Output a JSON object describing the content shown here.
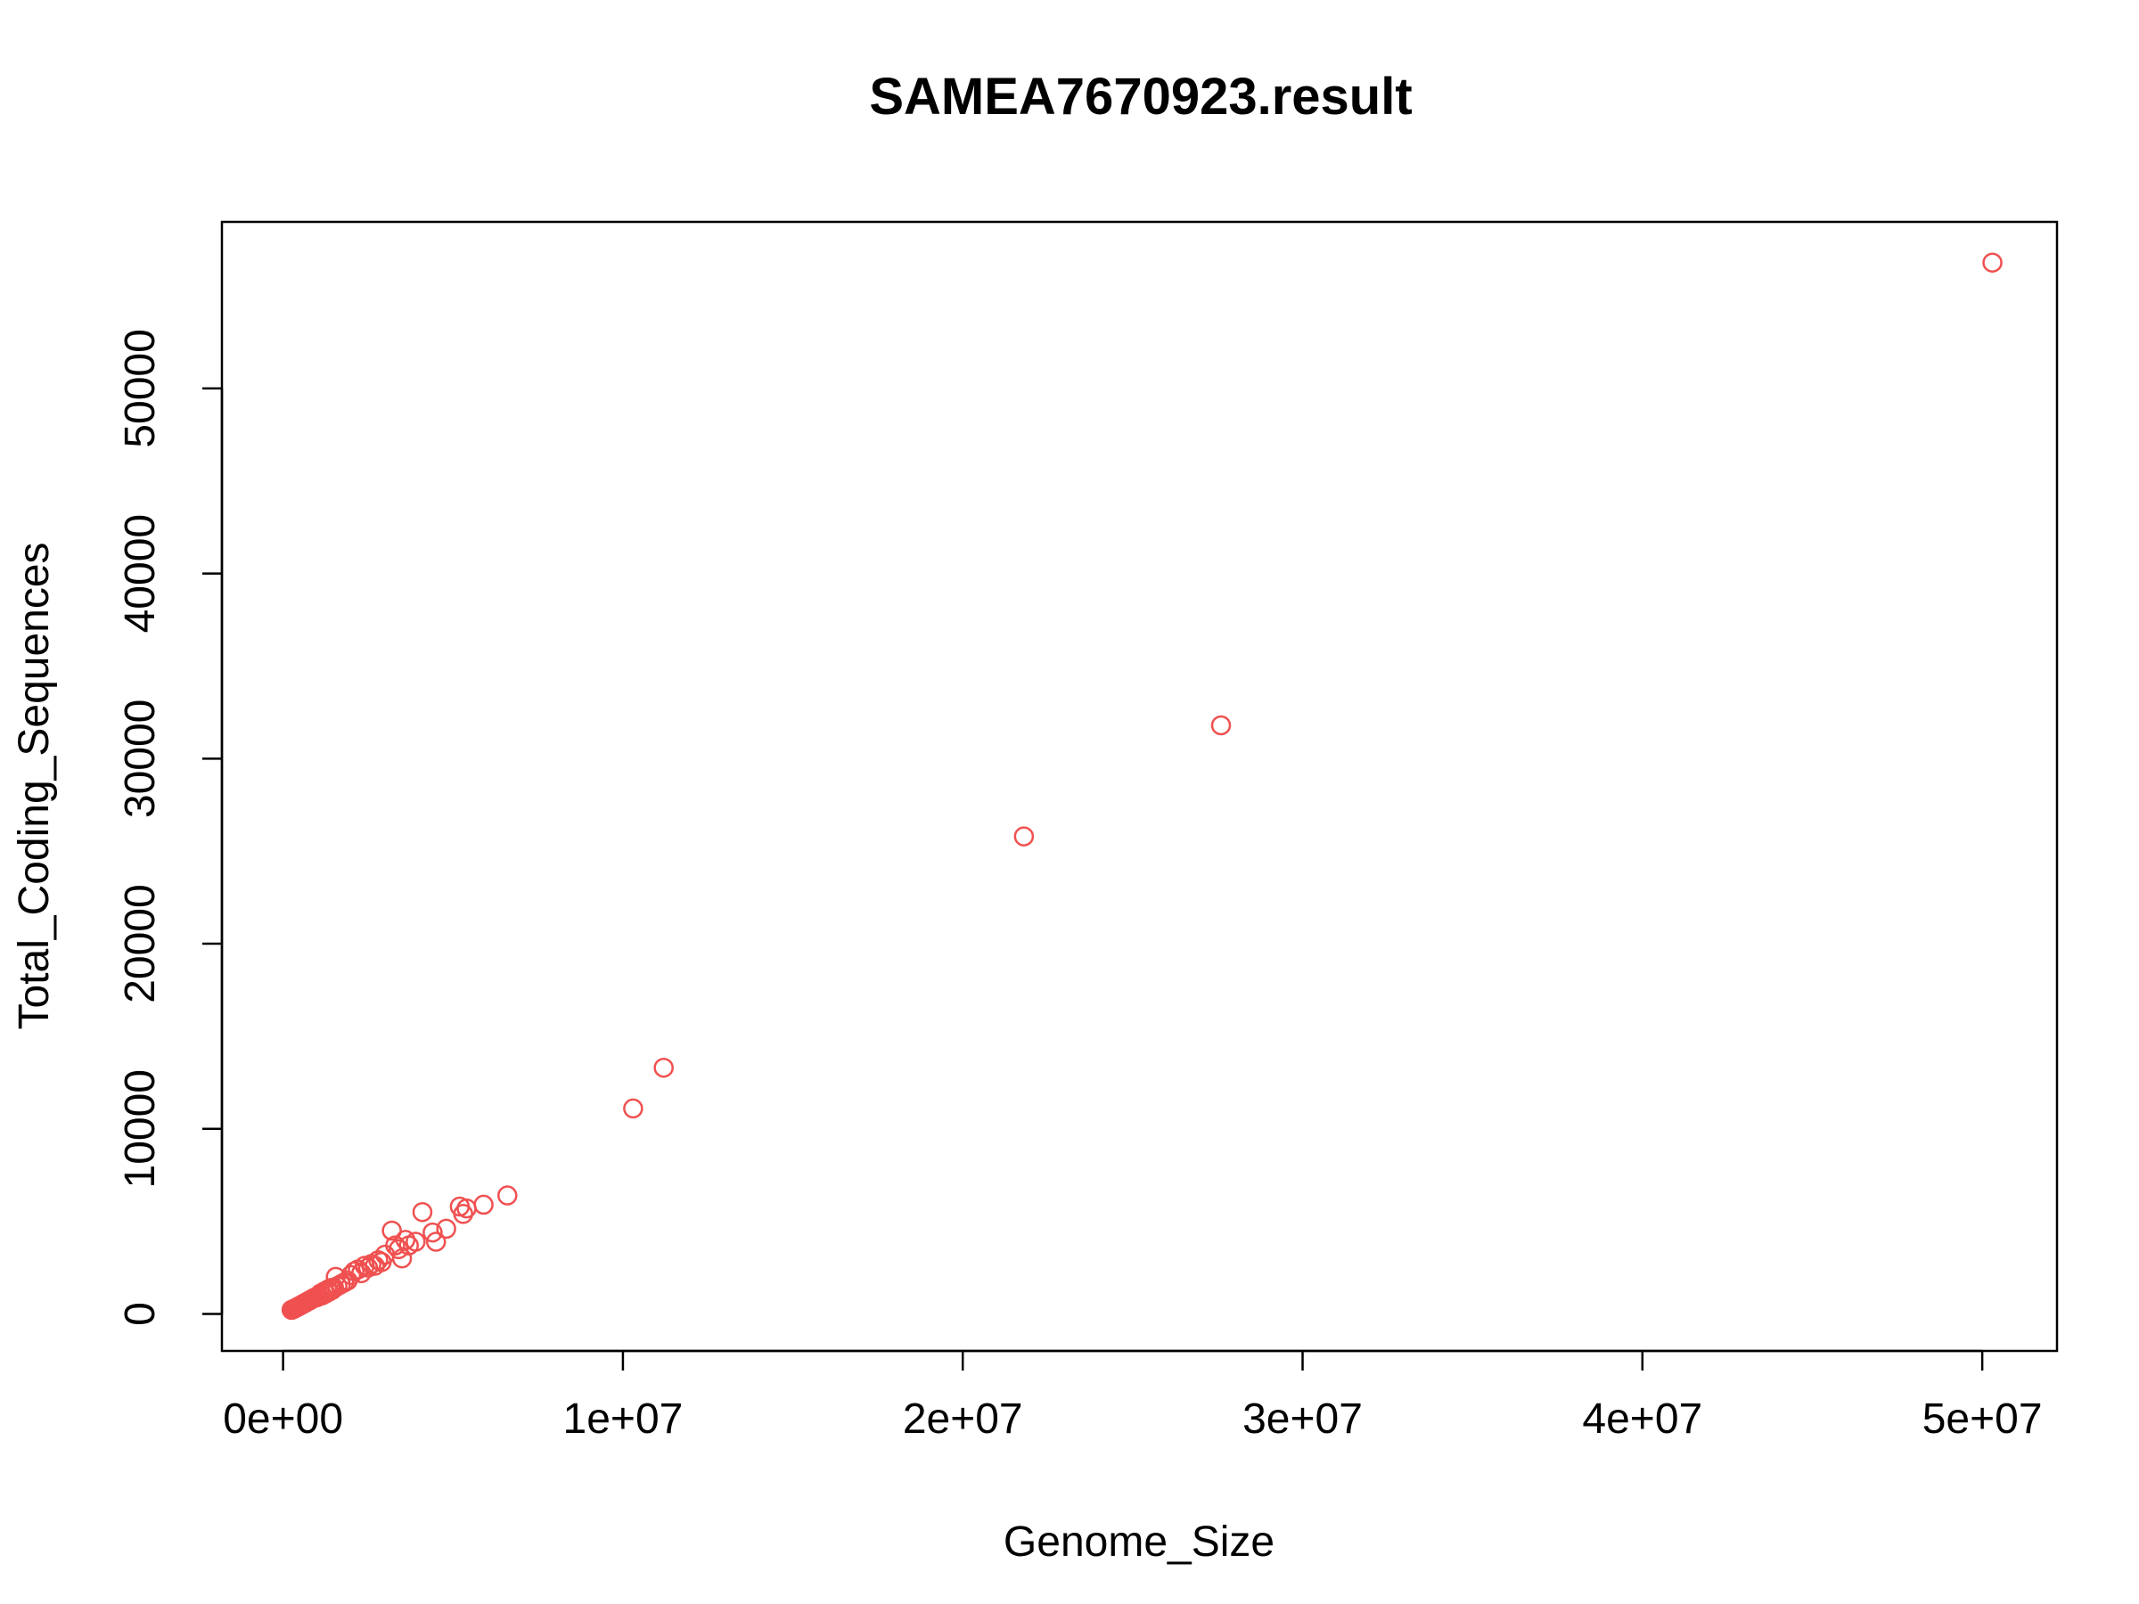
{
  "chart_data": {
    "type": "scatter",
    "title": "SAMEA7670923.result",
    "xlabel": "Genome_Size",
    "ylabel": "Total_Coding_Sequences",
    "xlim": [
      -1800000,
      52200000
    ],
    "ylim": [
      -2000,
      59000
    ],
    "x_ticks": [
      0,
      10000000,
      20000000,
      30000000,
      40000000,
      50000000
    ],
    "x_tick_labels": [
      "0e+00",
      "1e+07",
      "2e+07",
      "3e+07",
      "4e+07",
      "5e+07"
    ],
    "y_ticks": [
      0,
      10000,
      20000,
      30000,
      40000,
      50000
    ],
    "y_tick_labels": [
      "0",
      "10000",
      "20000",
      "30000",
      "40000",
      "50000"
    ],
    "grid": false,
    "legend": "none",
    "marker": "open-circle",
    "point_color": "#F05050",
    "series": [
      {
        "x": [
          50300000,
          27600000,
          21800000,
          11200000,
          10300000,
          6600000,
          5900000,
          5400000,
          5300000,
          5200000,
          4800000,
          4500000,
          4400000,
          4100000,
          3900000,
          3700000,
          3600000,
          3500000,
          3400000,
          3300000,
          3200000,
          3000000,
          2900000,
          2800000,
          2700000,
          2600000,
          2500000,
          2400000,
          2300000,
          2200000,
          2100000,
          2000000,
          1900000,
          1800000,
          1700000,
          1600000,
          1550000,
          1500000,
          1450000,
          1400000,
          1350000,
          1300000,
          1250000,
          1200000,
          1150000,
          1100000,
          1050000,
          1000000,
          950000,
          900000,
          850000,
          800000,
          750000,
          700000,
          650000,
          600000,
          550000,
          500000,
          450000,
          400000,
          350000,
          300000,
          250000
        ],
        "y": [
          56800,
          31800,
          25800,
          13300,
          11100,
          6400,
          5900,
          5700,
          5400,
          5800,
          4600,
          3900,
          4400,
          5500,
          3900,
          3700,
          4000,
          3000,
          3500,
          3700,
          4500,
          3200,
          2800,
          2900,
          2600,
          2700,
          2500,
          2600,
          2200,
          2400,
          2300,
          2100,
          1800,
          1700,
          1600,
          1500,
          2000,
          1400,
          1300,
          1400,
          1200,
          1300,
          1100,
          1200,
          1000,
          1100,
          1000,
          900,
          900,
          850,
          800,
          750,
          700,
          650,
          600,
          550,
          500,
          450,
          400,
          350,
          300,
          260,
          220
        ]
      }
    ]
  }
}
